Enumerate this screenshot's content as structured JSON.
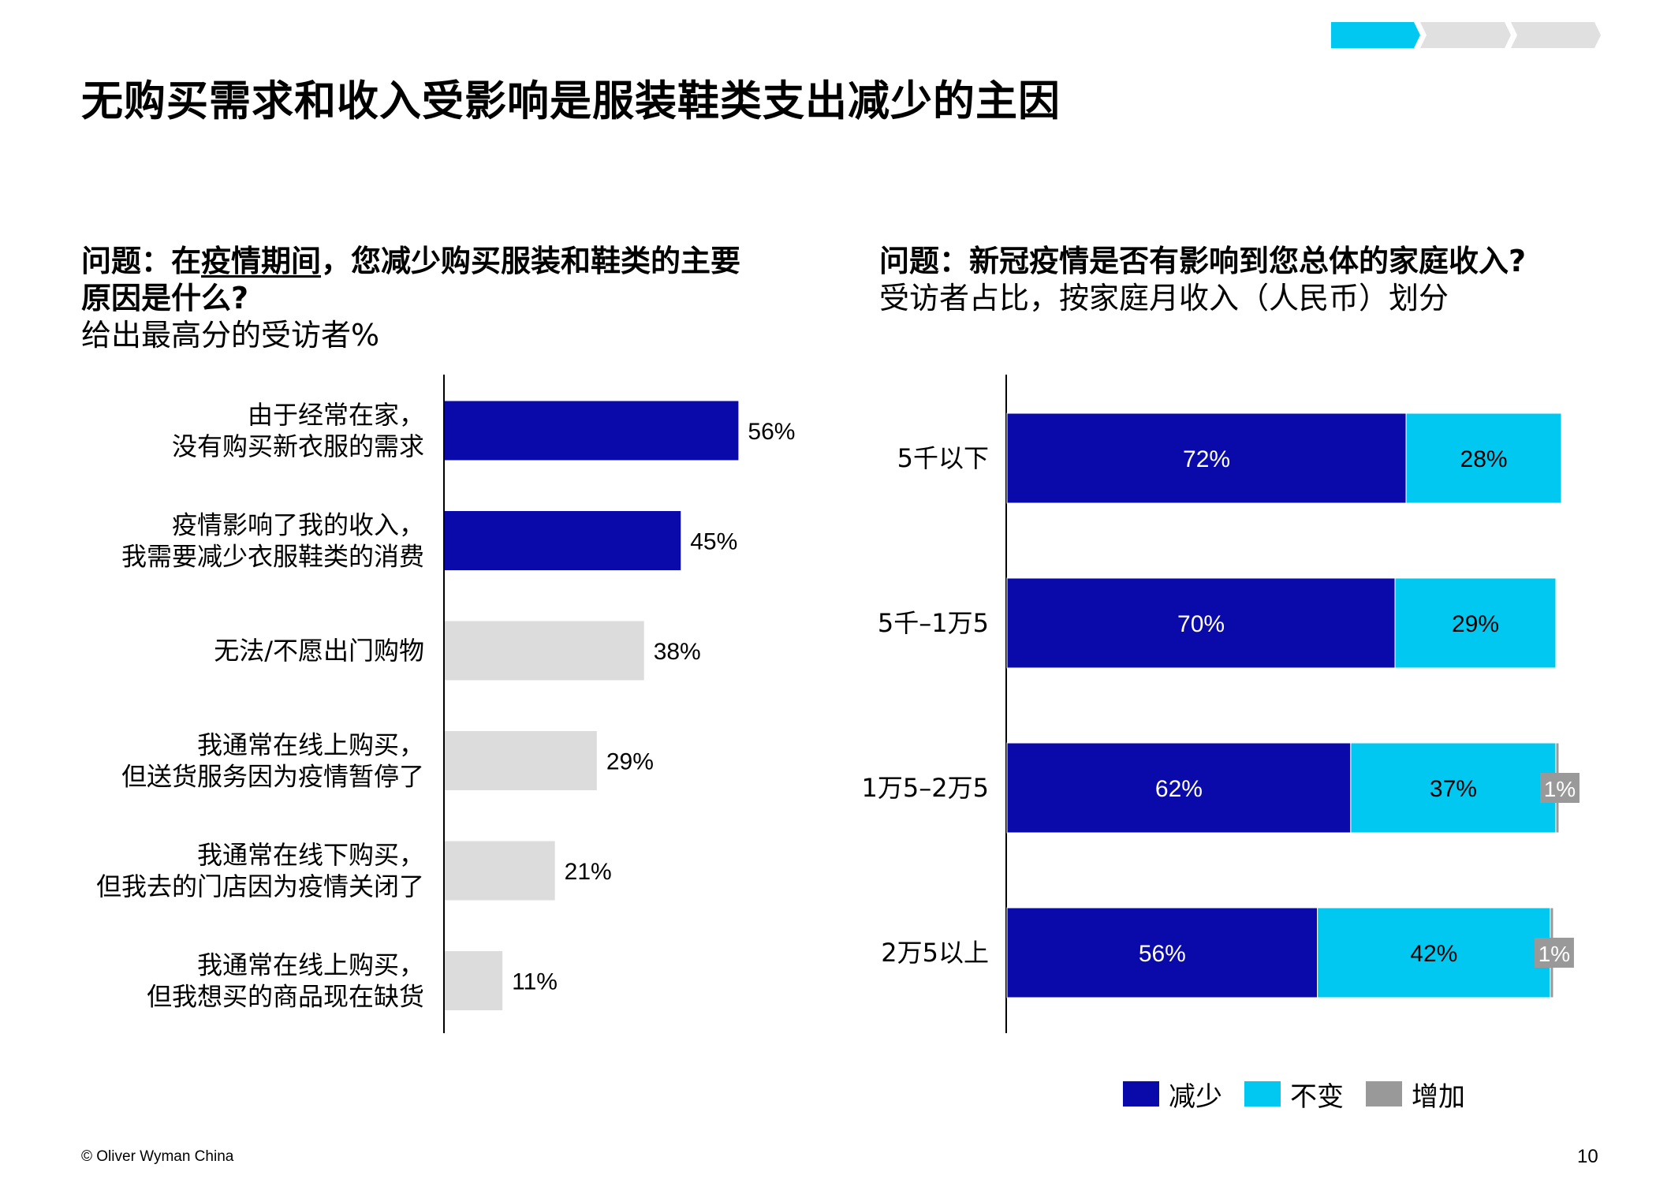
{
  "title": "无购买需求和收入受影响是服装鞋类支出减少的主因",
  "progress": {
    "total_steps": 3,
    "current_step": 1
  },
  "left_question": {
    "prefix": "问题：在",
    "underlined": "疫情期间",
    "rest_line1": "，您减少购买服装和鞋类的主要",
    "line2": "原因是什么?",
    "subtitle": "给出最高分的受访者%"
  },
  "right_question": {
    "line1": "问题：新冠疫情是否有影响到您总体的家庭收入?",
    "subtitle": "受访者占比，按家庭月收入（人民币）划分"
  },
  "chart_data": [
    {
      "type": "bar",
      "orientation": "horizontal",
      "categories": [
        [
          "由于经常在家，",
          "没有购买新衣服的需求"
        ],
        [
          "疫情影响了我的收入，",
          "我需要减少衣服鞋类的消费"
        ],
        [
          "无法/不愿出门购物"
        ],
        [
          "我通常在线上购买，",
          "但送货服务因为疫情暂停了"
        ],
        [
          "我通常在线下购买，",
          "但我去的门店因为疫情关闭了"
        ],
        [
          "我通常在线上购买，",
          "但我想买的商品现在缺货"
        ]
      ],
      "values": [
        56,
        45,
        38,
        29,
        21,
        11
      ],
      "labels": [
        "56%",
        "45%",
        "38%",
        "29%",
        "21%",
        "11%"
      ],
      "highlight": [
        true,
        true,
        false,
        false,
        false,
        false
      ],
      "colors": {
        "highlight": "#0a0aab",
        "normal": "#dcdcdc"
      },
      "xlim": [
        0,
        100
      ],
      "unit": "%"
    },
    {
      "type": "bar",
      "orientation": "horizontal",
      "stacked": true,
      "categories": [
        "5千以下",
        "5千–1万5",
        "1万5–2万5",
        "2万5以上"
      ],
      "series": [
        {
          "name": "减少",
          "color": "#0a0aab",
          "values": [
            72,
            70,
            62,
            56
          ],
          "labels": [
            "72%",
            "70%",
            "62%",
            "56%"
          ]
        },
        {
          "name": "不变",
          "color": "#00c8f0",
          "values": [
            28,
            29,
            37,
            42
          ],
          "labels": [
            "28%",
            "29%",
            "37%",
            "42%"
          ]
        },
        {
          "name": "增加",
          "color": "#999999",
          "values": [
            0,
            0,
            1,
            1
          ],
          "labels": [
            "",
            "",
            "1%",
            "1%"
          ]
        }
      ],
      "xlim": [
        0,
        100
      ],
      "unit": "%"
    }
  ],
  "legend": [
    {
      "label": "减少",
      "color": "#0a0aab"
    },
    {
      "label": "不变",
      "color": "#00c8f0"
    },
    {
      "label": "增加",
      "color": "#999999"
    }
  ],
  "footer": "© Oliver Wyman China",
  "page_number": "10"
}
